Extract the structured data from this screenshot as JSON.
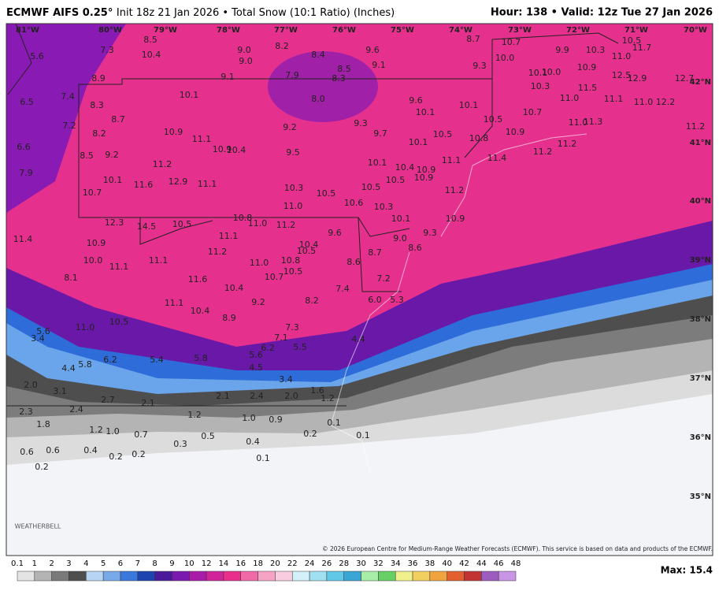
{
  "header": {
    "title_bold": "ECMWF AIFS 0.25°",
    "title_rest": "Init 18z 21 Jan 2026 • Total Snow (10:1 Ratio) (Inches)",
    "valid": "Hour: 138 • Valid: 12z Tue 27 Jan 2026"
  },
  "map": {
    "lon_labels": [
      "81°W",
      "80°W",
      "79°W",
      "78°W",
      "77°W",
      "76°W",
      "75°W",
      "74°W",
      "73°W",
      "72°W",
      "71°W",
      "70°W"
    ],
    "lat_labels": [
      "42°N",
      "41°N",
      "40°N",
      "39°N",
      "38°N",
      "37°N",
      "36°N",
      "35°N"
    ],
    "point_values": [
      "5.6",
      "7.3",
      "8.5",
      "10.4",
      "9.0",
      "9.0",
      "8.2",
      "8.4",
      "9.6",
      "9.1",
      "8.7",
      "9.3",
      "10.7",
      "10.0",
      "9.9",
      "10.3",
      "11.0",
      "10.5",
      "11.7",
      "8.9",
      "9.1",
      "7.9",
      "8.3",
      "8.5",
      "6.5",
      "7.4",
      "8.3",
      "10.1",
      "8.0",
      "9.6",
      "10.1",
      "10.9",
      "10.1",
      "10.0",
      "12.5",
      "12.9",
      "12.7",
      "10.3",
      "11.5",
      "11.0",
      "11.1",
      "11.0",
      "12.2",
      "7.2",
      "8.7",
      "8.2",
      "10.9",
      "9.2",
      "9.3",
      "10.1",
      "10.5",
      "10.7",
      "11.0",
      "11.3",
      "11.2",
      "6.6",
      "8.5",
      "9.2",
      "11.1",
      "10.9",
      "10.4",
      "9.7",
      "9.5",
      "10.1",
      "10.5",
      "10.8",
      "10.9",
      "7.9",
      "11.2",
      "10.1",
      "10.4",
      "10.9",
      "11.1",
      "11.4",
      "11.2",
      "11.2",
      "10.1",
      "11.6",
      "12.9",
      "11.1",
      "10.3",
      "10.5",
      "10.5",
      "10.5",
      "10.9",
      "11.2",
      "10.7",
      "11.0",
      "10.6",
      "10.3",
      "12.3",
      "14.5",
      "10.5",
      "10.8",
      "11.0",
      "11.2",
      "10.1",
      "10.9",
      "11.4",
      "10.9",
      "11.1",
      "9.6",
      "9.0",
      "9.3",
      "10.4",
      "10.5",
      "8.6",
      "8.7",
      "11.2",
      "10.0",
      "11.1",
      "11.1",
      "11.0",
      "10.8",
      "8.6",
      "10.5",
      "10.7",
      "7.2",
      "8.1",
      "11.6",
      "10.4",
      "7.4",
      "6.0",
      "5.3",
      "9.2",
      "8.2",
      "11.1",
      "10.4",
      "8.9",
      "10.5",
      "11.0",
      "7.3",
      "5.6",
      "7.1",
      "6.2",
      "5.5",
      "4.4",
      "3.4",
      "6.2",
      "5.4",
      "5.8",
      "5.6",
      "4.5",
      "5.8",
      "4.4",
      "3.4",
      "2.0",
      "3.1",
      "2.7",
      "2.1",
      "2.1",
      "2.4",
      "2.0",
      "1.6",
      "1.2",
      "2.3",
      "2.4",
      "1.2",
      "1.0",
      "0.9",
      "1.8",
      "1.2",
      "1.0",
      "0.7",
      "0.5",
      "0.4",
      "0.3",
      "0.2",
      "0.1",
      "0.1",
      "0.6",
      "0.6",
      "0.4",
      "0.2",
      "0.2",
      "0.1",
      "0.2"
    ],
    "logo": "WEATHERBELL"
  },
  "colorbar": {
    "labels": [
      "0.1",
      "1",
      "2",
      "3",
      "4",
      "5",
      "6",
      "7",
      "8",
      "9",
      "10",
      "12",
      "14",
      "16",
      "18",
      "20",
      "22",
      "24",
      "26",
      "28",
      "30",
      "32",
      "34",
      "36",
      "38",
      "40",
      "42",
      "44",
      "46",
      "48"
    ],
    "colors": [
      "#e4e4e4",
      "#b4b4b4",
      "#7a7a7a",
      "#4e4e4e",
      "#b8d4f4",
      "#78aaea",
      "#3a78dc",
      "#1e44b0",
      "#4a1a9a",
      "#7a1aae",
      "#a81ca8",
      "#d0249a",
      "#ea2e8c",
      "#f06aa8",
      "#f6a4c6",
      "#facce0",
      "#d4f0f8",
      "#a0e0f0",
      "#62c8e8",
      "#3aa6d6",
      "#a8eea8",
      "#66d066",
      "#f0f08c",
      "#f2d060",
      "#f0a440",
      "#e26030",
      "#c23434",
      "#9c5cc0",
      "#c896e4"
    ]
  },
  "footer": {
    "copyright": "© 2026 European Centre for Medium-Range Weather Forecasts (ECMWF). This service is based on data and products of the ECMWF.",
    "max": "Max: 15.4"
  }
}
